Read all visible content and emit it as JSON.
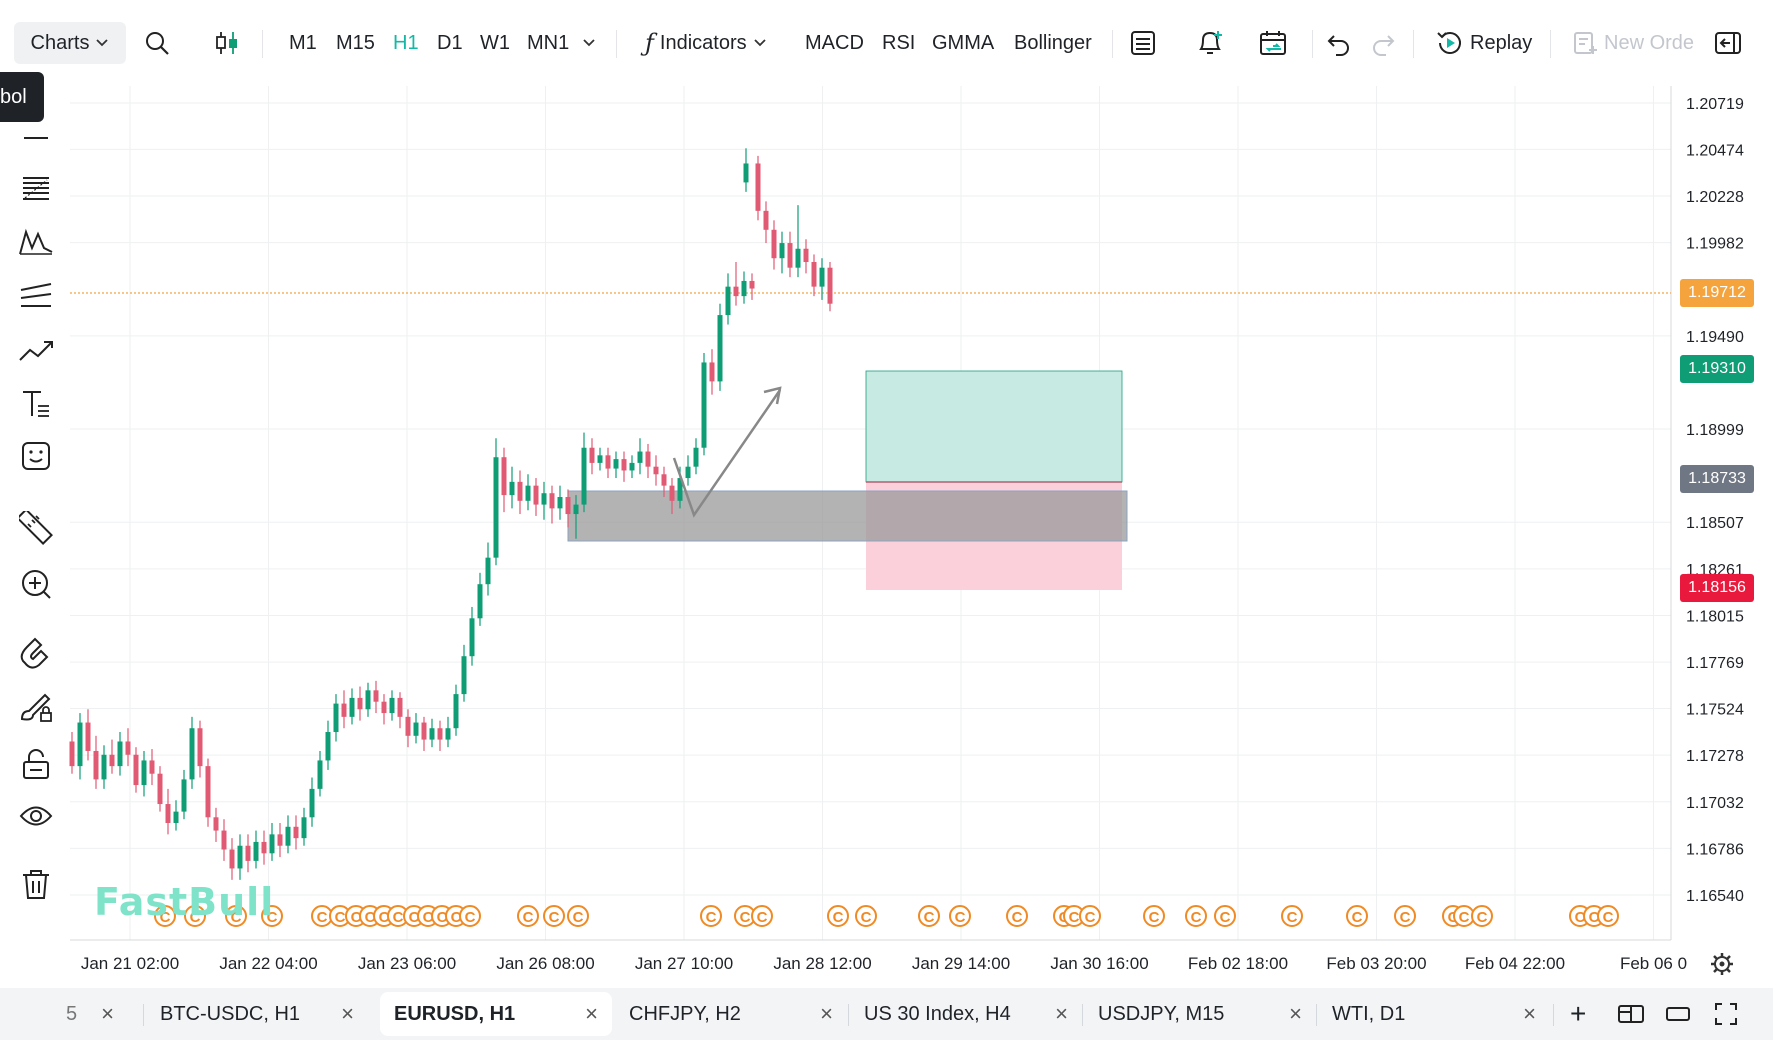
{
  "toolbar": {
    "charts_label": "Charts",
    "timeframes": [
      "M1",
      "M15",
      "H1",
      "D1",
      "W1",
      "MN1"
    ],
    "active_timeframe": "H1",
    "indicators_label": "Indicators",
    "indicator_shortcuts": [
      "MACD",
      "RSI",
      "GMMA",
      "Bollinger"
    ],
    "replay_label": "Replay",
    "new_order_label": "New Orde"
  },
  "sidebar": {
    "symbol_tooltip": "bol",
    "tools": [
      "horizontal-line-icon",
      "fib-levels-icon",
      "pattern-icon",
      "parallel-channel-icon",
      "trend-line-icon",
      "text-icon",
      "emoji-icon",
      "ruler-icon",
      "zoom-in-icon",
      "magnet-icon",
      "brush-lock-icon",
      "unlock-icon",
      "eye-icon",
      "trash-icon",
      "star-icon"
    ]
  },
  "chart": {
    "watermark": "FastBull",
    "price_axis_ticks": [
      "1.20719",
      "1.20474",
      "1.20228",
      "1.19982",
      "1.19490",
      "1.18999",
      "1.18507",
      "1.18261",
      "1.18015",
      "1.17769",
      "1.17524",
      "1.17278",
      "1.17032",
      "1.16786",
      "1.16540"
    ],
    "current_price": "1.19712",
    "take_profit": "1.19310",
    "entry": "1.18733",
    "stop_loss": "1.18156",
    "time_axis_ticks": [
      "Jan 21 02:00",
      "Jan 22 04:00",
      "Jan 23 06:00",
      "Jan 26 08:00",
      "Jan 27 10:00",
      "Jan 28 12:00",
      "Jan 29 14:00",
      "Jan 30 16:00",
      "Feb 02 18:00",
      "Feb 03 20:00",
      "Feb 04 22:00",
      "Feb 06 0"
    ],
    "event_marker_glyph": "C",
    "colors": {
      "up": "#0f9d76",
      "down": "#e05a73",
      "current": "#f5a33c",
      "tp": "#0f9d76",
      "sl": "#e8193c",
      "entry": "#707784"
    }
  },
  "tabs": [
    {
      "label": "5",
      "active": false
    },
    {
      "label": "BTC-USDC, H1",
      "active": false
    },
    {
      "label": "EURUSD, H1",
      "active": true
    },
    {
      "label": "CHFJPY, H2",
      "active": false
    },
    {
      "label": "US 30 Index, H4",
      "active": false
    },
    {
      "label": "USDJPY, M15",
      "active": false
    },
    {
      "label": "WTI, D1",
      "active": false
    }
  ],
  "tab_close_glyph": "×",
  "add_tab_glyph": "+"
}
